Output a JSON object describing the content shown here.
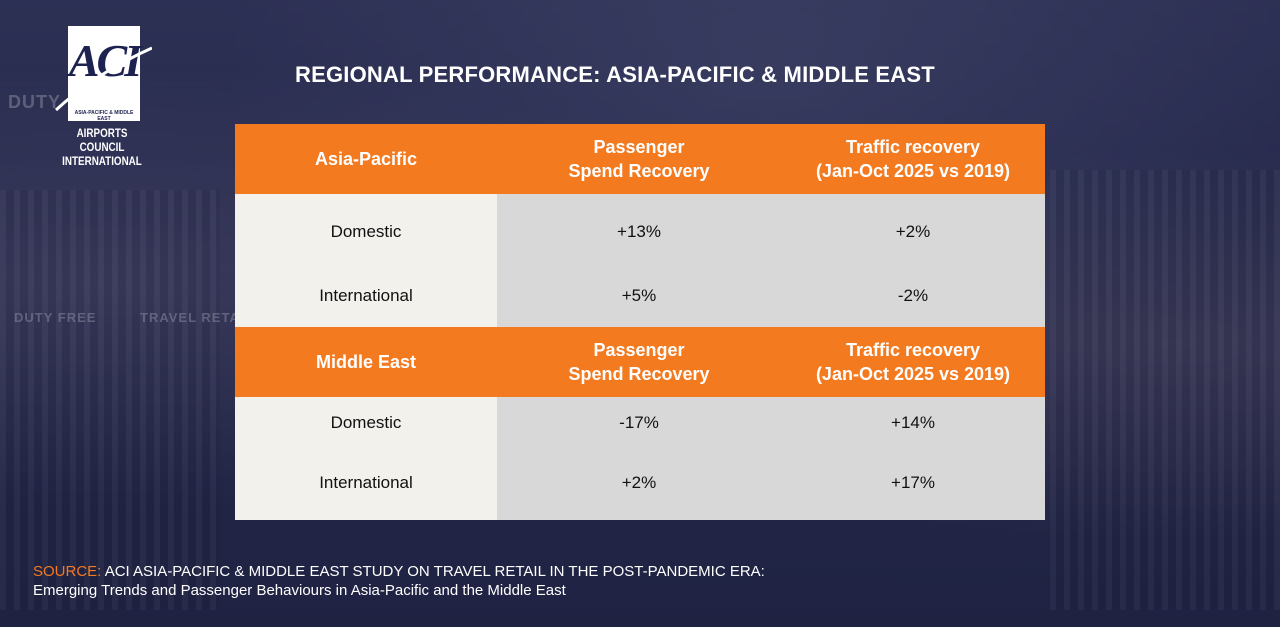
{
  "logo": {
    "mark": "ACI",
    "region_line": "ASIA-PACIFIC & MIDDLE EAST",
    "org_line1": "AIRPORTS COUNCIL",
    "org_line2": "INTERNATIONAL"
  },
  "background_signs": [
    "DUTY",
    "DUTY FREE",
    "TRAVEL RETAIL"
  ],
  "title": "REGIONAL PERFORMANCE: ASIA-PACIFIC  & MIDDLE EAST",
  "colors": {
    "accent": "#f47a20",
    "header_text": "#ffffff",
    "left_col_bg": "#f3f1ec",
    "data_bg": "#d8d8d8"
  },
  "sections": [
    {
      "region": "Asia-Pacific",
      "col2_header": [
        "Passenger",
        "Spend Recovery"
      ],
      "col3_header": [
        "Traffic recovery",
        "(Jan-Oct 2025 vs 2019)"
      ],
      "rows": [
        {
          "label": "Domestic",
          "spend": "+13%",
          "traffic": "+2%"
        },
        {
          "label": "International",
          "spend": "+5%",
          "traffic": "-2%"
        }
      ]
    },
    {
      "region": "Middle East",
      "col2_header": [
        "Passenger",
        "Spend Recovery"
      ],
      "col3_header": [
        "Traffic recovery",
        "(Jan-Oct 2025 vs 2019)"
      ],
      "rows": [
        {
          "label": "Domestic",
          "spend": "-17%",
          "traffic": "+14%"
        },
        {
          "label": "International",
          "spend": "+2%",
          "traffic": "+17%"
        }
      ]
    }
  ],
  "source": {
    "label": "SOURCE:",
    "line1": "ACI ASIA-PACIFIC & MIDDLE EAST STUDY ON TRAVEL RETAIL IN THE POST-PANDEMIC ERA:",
    "line2": "Emerging Trends and Passenger Behaviours in Asia-Pacific and the Middle East"
  }
}
